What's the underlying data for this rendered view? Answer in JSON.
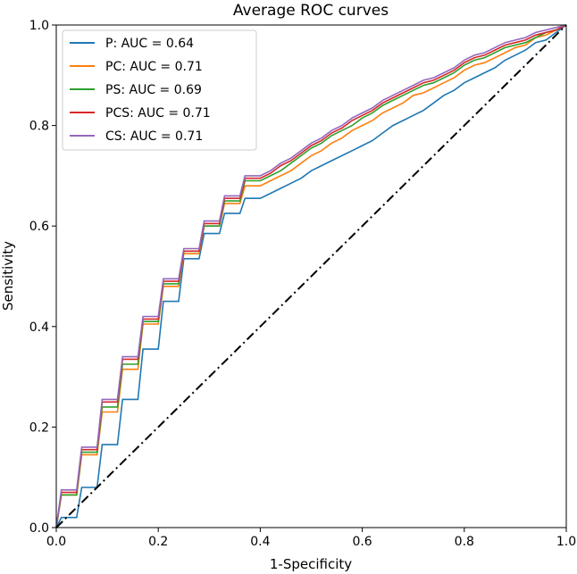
{
  "chart_data": {
    "type": "line",
    "title": "Average ROC curves",
    "xlabel": "1-Specificity",
    "ylabel": "Sensitivity",
    "xlim": [
      0,
      1
    ],
    "ylim": [
      0,
      1
    ],
    "xticks": [
      0.0,
      0.2,
      0.4,
      0.6,
      0.8,
      1.0
    ],
    "yticks": [
      0.0,
      0.2,
      0.4,
      0.6,
      0.8,
      1.0
    ],
    "xtick_labels": [
      "0.0",
      "0.2",
      "0.4",
      "0.6",
      "0.8",
      "1.0"
    ],
    "ytick_labels": [
      "0.0",
      "0.2",
      "0.4",
      "0.6",
      "0.8",
      "1.0"
    ],
    "grid": false,
    "legend_position": "top-left",
    "reference_line": {
      "x": [
        0,
        1
      ],
      "y": [
        0,
        1
      ],
      "style": "dash-dot",
      "color": "#000000"
    },
    "series": [
      {
        "name": "P: AUC = 0.64",
        "color": "#1f77b4",
        "x": [
          0,
          0.01,
          0.04,
          0.05,
          0.08,
          0.09,
          0.12,
          0.13,
          0.16,
          0.17,
          0.2,
          0.21,
          0.24,
          0.25,
          0.28,
          0.29,
          0.32,
          0.33,
          0.36,
          0.37,
          0.4,
          0.42,
          0.44,
          0.46,
          0.48,
          0.5,
          0.52,
          0.54,
          0.56,
          0.58,
          0.6,
          0.62,
          0.64,
          0.66,
          0.68,
          0.7,
          0.72,
          0.74,
          0.76,
          0.78,
          0.8,
          0.82,
          0.84,
          0.86,
          0.88,
          0.9,
          0.92,
          0.94,
          0.96,
          0.98,
          1.0
        ],
        "y": [
          0,
          0.02,
          0.02,
          0.08,
          0.08,
          0.165,
          0.165,
          0.255,
          0.255,
          0.355,
          0.355,
          0.45,
          0.45,
          0.535,
          0.535,
          0.585,
          0.585,
          0.625,
          0.625,
          0.655,
          0.655,
          0.665,
          0.675,
          0.685,
          0.695,
          0.71,
          0.72,
          0.73,
          0.74,
          0.75,
          0.76,
          0.77,
          0.785,
          0.8,
          0.81,
          0.82,
          0.83,
          0.845,
          0.86,
          0.87,
          0.885,
          0.895,
          0.905,
          0.915,
          0.93,
          0.94,
          0.95,
          0.965,
          0.97,
          0.985,
          1.0
        ]
      },
      {
        "name": "PC: AUC = 0.71",
        "color": "#ff7f0e",
        "x": [
          0,
          0.01,
          0.04,
          0.05,
          0.08,
          0.09,
          0.12,
          0.13,
          0.16,
          0.17,
          0.2,
          0.21,
          0.24,
          0.25,
          0.28,
          0.29,
          0.32,
          0.33,
          0.36,
          0.37,
          0.4,
          0.42,
          0.44,
          0.46,
          0.48,
          0.5,
          0.52,
          0.54,
          0.56,
          0.58,
          0.6,
          0.62,
          0.64,
          0.66,
          0.68,
          0.7,
          0.72,
          0.74,
          0.76,
          0.78,
          0.8,
          0.82,
          0.84,
          0.86,
          0.88,
          0.9,
          0.92,
          0.94,
          0.96,
          0.98,
          1.0
        ],
        "y": [
          0,
          0.065,
          0.065,
          0.145,
          0.145,
          0.23,
          0.23,
          0.315,
          0.315,
          0.405,
          0.405,
          0.48,
          0.48,
          0.545,
          0.545,
          0.6,
          0.6,
          0.645,
          0.645,
          0.68,
          0.68,
          0.69,
          0.7,
          0.71,
          0.725,
          0.74,
          0.75,
          0.765,
          0.775,
          0.79,
          0.8,
          0.81,
          0.825,
          0.835,
          0.845,
          0.86,
          0.865,
          0.875,
          0.885,
          0.895,
          0.91,
          0.92,
          0.925,
          0.935,
          0.945,
          0.955,
          0.96,
          0.975,
          0.98,
          0.99,
          1.0
        ]
      },
      {
        "name": "PS: AUC = 0.69",
        "color": "#2ca02c",
        "x": [
          0,
          0.01,
          0.04,
          0.05,
          0.08,
          0.09,
          0.12,
          0.13,
          0.16,
          0.17,
          0.2,
          0.21,
          0.24,
          0.25,
          0.28,
          0.29,
          0.32,
          0.33,
          0.36,
          0.37,
          0.4,
          0.42,
          0.44,
          0.46,
          0.48,
          0.5,
          0.52,
          0.54,
          0.56,
          0.58,
          0.6,
          0.62,
          0.64,
          0.66,
          0.68,
          0.7,
          0.72,
          0.74,
          0.76,
          0.78,
          0.8,
          0.82,
          0.84,
          0.86,
          0.88,
          0.9,
          0.92,
          0.94,
          0.96,
          0.98,
          1.0
        ],
        "y": [
          0,
          0.065,
          0.065,
          0.15,
          0.15,
          0.24,
          0.24,
          0.325,
          0.325,
          0.41,
          0.41,
          0.485,
          0.485,
          0.55,
          0.55,
          0.6,
          0.6,
          0.65,
          0.65,
          0.69,
          0.69,
          0.7,
          0.71,
          0.725,
          0.74,
          0.755,
          0.765,
          0.78,
          0.79,
          0.8,
          0.815,
          0.825,
          0.84,
          0.85,
          0.86,
          0.87,
          0.88,
          0.885,
          0.895,
          0.905,
          0.92,
          0.93,
          0.935,
          0.945,
          0.955,
          0.96,
          0.965,
          0.975,
          0.985,
          0.99,
          1.0
        ]
      },
      {
        "name": "PCS: AUC = 0.71",
        "color": "#d62728",
        "x": [
          0,
          0.01,
          0.04,
          0.05,
          0.08,
          0.09,
          0.12,
          0.13,
          0.16,
          0.17,
          0.2,
          0.21,
          0.24,
          0.25,
          0.28,
          0.29,
          0.32,
          0.33,
          0.36,
          0.37,
          0.4,
          0.42,
          0.44,
          0.46,
          0.48,
          0.5,
          0.52,
          0.54,
          0.56,
          0.58,
          0.6,
          0.62,
          0.64,
          0.66,
          0.68,
          0.7,
          0.72,
          0.74,
          0.76,
          0.78,
          0.8,
          0.82,
          0.84,
          0.86,
          0.88,
          0.9,
          0.92,
          0.94,
          0.96,
          0.98,
          1.0
        ],
        "y": [
          0,
          0.07,
          0.07,
          0.155,
          0.155,
          0.25,
          0.25,
          0.335,
          0.335,
          0.415,
          0.415,
          0.49,
          0.49,
          0.55,
          0.55,
          0.605,
          0.605,
          0.655,
          0.655,
          0.695,
          0.695,
          0.705,
          0.72,
          0.73,
          0.745,
          0.76,
          0.77,
          0.785,
          0.795,
          0.81,
          0.82,
          0.83,
          0.845,
          0.855,
          0.865,
          0.875,
          0.885,
          0.89,
          0.9,
          0.91,
          0.925,
          0.935,
          0.94,
          0.95,
          0.96,
          0.965,
          0.97,
          0.98,
          0.985,
          0.99,
          1.0
        ]
      },
      {
        "name": "CS: AUC = 0.71",
        "color": "#9467bd",
        "x": [
          0,
          0.01,
          0.04,
          0.05,
          0.08,
          0.09,
          0.12,
          0.13,
          0.16,
          0.17,
          0.2,
          0.21,
          0.24,
          0.25,
          0.28,
          0.29,
          0.32,
          0.33,
          0.36,
          0.37,
          0.4,
          0.42,
          0.44,
          0.46,
          0.48,
          0.5,
          0.52,
          0.54,
          0.56,
          0.58,
          0.6,
          0.62,
          0.64,
          0.66,
          0.68,
          0.7,
          0.72,
          0.74,
          0.76,
          0.78,
          0.8,
          0.82,
          0.84,
          0.86,
          0.88,
          0.9,
          0.92,
          0.94,
          0.96,
          0.98,
          1.0
        ],
        "y": [
          0,
          0.075,
          0.075,
          0.16,
          0.16,
          0.255,
          0.255,
          0.34,
          0.34,
          0.42,
          0.42,
          0.495,
          0.495,
          0.555,
          0.555,
          0.61,
          0.61,
          0.66,
          0.66,
          0.7,
          0.7,
          0.71,
          0.725,
          0.735,
          0.75,
          0.765,
          0.775,
          0.79,
          0.8,
          0.815,
          0.825,
          0.835,
          0.85,
          0.86,
          0.87,
          0.88,
          0.89,
          0.895,
          0.905,
          0.915,
          0.93,
          0.94,
          0.945,
          0.955,
          0.965,
          0.97,
          0.975,
          0.985,
          0.99,
          0.995,
          1.0
        ]
      }
    ]
  }
}
